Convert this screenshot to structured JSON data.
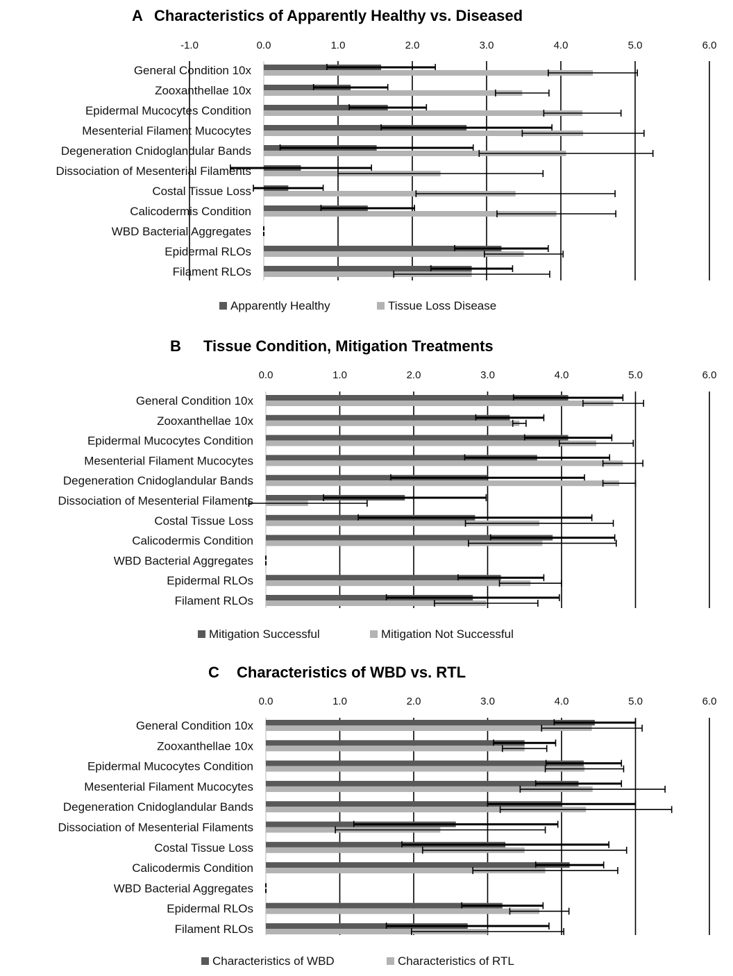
{
  "chart_data": [
    {
      "type": "bar",
      "panel_label": "A",
      "title": "Characteristics of Apparently Healthy vs. Diseased",
      "xlim": [
        -1,
        6
      ],
      "ticks": [
        "-1.0",
        "0.0",
        "1.0",
        "2.0",
        "3.0",
        "4.0",
        "5.0",
        "6.0"
      ],
      "tick_values": [
        -1,
        0,
        1,
        2,
        3,
        4,
        5,
        6
      ],
      "categories": [
        "General Condition 10x",
        "Zooxanthellae 10x",
        "Epidermal Mucocytes Condition",
        "Mesenterial Filament Mucocytes",
        "Degeneration Cnidoglandular Bands",
        "Dissociation of Mesenterial Filaments",
        "Costal Tissue Loss",
        "Calicodermis Condition",
        "WBD Bacterial Aggregates",
        "Epidermal RLOs",
        "Filament RLOs"
      ],
      "series": [
        {
          "name": "Apparently Healthy",
          "color": "#595959",
          "values": [
            1.58,
            1.17,
            1.67,
            2.73,
            1.52,
            0.5,
            0.33,
            1.4,
            0.0,
            3.2,
            2.8
          ],
          "errors": [
            0.73,
            0.5,
            0.52,
            1.15,
            1.3,
            0.95,
            0.47,
            0.63,
            0.0,
            0.63,
            0.55
          ]
        },
        {
          "name": "Tissue Loss Disease",
          "color": "#b3b3b3",
          "values": [
            4.43,
            3.48,
            4.29,
            4.3,
            4.07,
            2.38,
            3.39,
            3.94,
            0.0,
            3.5,
            2.8
          ],
          "errors": [
            0.6,
            0.36,
            0.52,
            0.82,
            1.17,
            1.38,
            1.34,
            0.8,
            0.0,
            0.53,
            1.05
          ]
        }
      ],
      "legend": {
        "position": "bottom",
        "labels": [
          "Apparently Healthy",
          "Tissue Loss Disease"
        ]
      }
    },
    {
      "type": "bar",
      "panel_label": "B",
      "title": "Tissue Condition, Mitigation  Treatments",
      "xlim": [
        0,
        6
      ],
      "ticks": [
        "0.0",
        "1.0",
        "2.0",
        "3.0",
        "4.0",
        "5.0",
        "6.0"
      ],
      "tick_values": [
        0,
        1,
        2,
        3,
        4,
        5,
        6
      ],
      "categories": [
        "General Condition 10x",
        "Zooxanthellae 10x",
        "Epidermal Mucocytes Condition",
        "Mesenterial Filament Mucocytes",
        "Degeneration Cnidoglandular Bands",
        "Dissociation of Mesenterial Filaments",
        "Costal Tissue Loss",
        "Calicodermis Condition",
        "WBD Bacterial Aggregates",
        "Epidermal RLOs",
        "Filament RLOs"
      ],
      "series": [
        {
          "name": "Mitigation Successful",
          "color": "#595959",
          "values": [
            4.09,
            3.3,
            4.09,
            3.67,
            3.0,
            1.88,
            2.83,
            3.88,
            0.0,
            3.18,
            2.8
          ],
          "errors": [
            0.74,
            0.46,
            0.59,
            0.98,
            1.31,
            1.1,
            1.58,
            0.84,
            0.0,
            0.58,
            1.17
          ]
        },
        {
          "name": "Mitigation Not Successful",
          "color": "#b3b3b3",
          "values": [
            4.7,
            3.43,
            4.47,
            4.83,
            4.78,
            0.57,
            3.7,
            3.74,
            0.0,
            3.58,
            2.98
          ],
          "errors": [
            0.41,
            0.09,
            0.5,
            0.27,
            0.22,
            0.8,
            1.0,
            1.0,
            0.0,
            0.42,
            0.7
          ]
        }
      ],
      "legend": {
        "position": "bottom",
        "labels": [
          "Mitigation Successful",
          "Mitigation Not Successful"
        ]
      }
    },
    {
      "type": "bar",
      "panel_label": "C",
      "title": "Characteristics of WBD vs. RTL",
      "xlim": [
        0,
        6
      ],
      "ticks": [
        "0.0",
        "1.0",
        "2.0",
        "3.0",
        "4.0",
        "5.0",
        "6.0"
      ],
      "tick_values": [
        0,
        1,
        2,
        3,
        4,
        5,
        6
      ],
      "categories": [
        "General Condition 10x",
        "Zooxanthellae 10x",
        "Epidermal Mucocytes Condition",
        "Mesenterial Filament Mucocytes",
        "Degeneration Cnidoglandular Bands",
        "Dissociation of Mesenterial Filaments",
        "Costal Tissue Loss",
        "Calicodermis Condition",
        "WBD Bacterial Aggregates",
        "Epidermal RLOs",
        "Filament RLOs"
      ],
      "series": [
        {
          "name": "Characteristics of WBD",
          "color": "#595959",
          "values": [
            4.45,
            3.5,
            4.3,
            4.23,
            4.0,
            2.57,
            3.24,
            4.11,
            0.0,
            3.2,
            2.73
          ],
          "errors": [
            0.55,
            0.42,
            0.51,
            0.58,
            1.0,
            1.38,
            1.4,
            0.46,
            0.0,
            0.55,
            1.1
          ]
        },
        {
          "name": "Characteristics of RTL",
          "color": "#b3b3b3",
          "values": [
            4.41,
            3.5,
            4.31,
            4.42,
            4.33,
            2.36,
            3.5,
            3.78,
            0.0,
            3.7,
            3.0
          ],
          "errors": [
            0.68,
            0.3,
            0.53,
            0.98,
            1.16,
            1.42,
            1.38,
            0.98,
            0.0,
            0.4,
            1.03
          ]
        }
      ],
      "legend": {
        "position": "bottom",
        "labels": [
          "Characteristics of WBD",
          "Characteristics of RTL"
        ]
      }
    }
  ]
}
